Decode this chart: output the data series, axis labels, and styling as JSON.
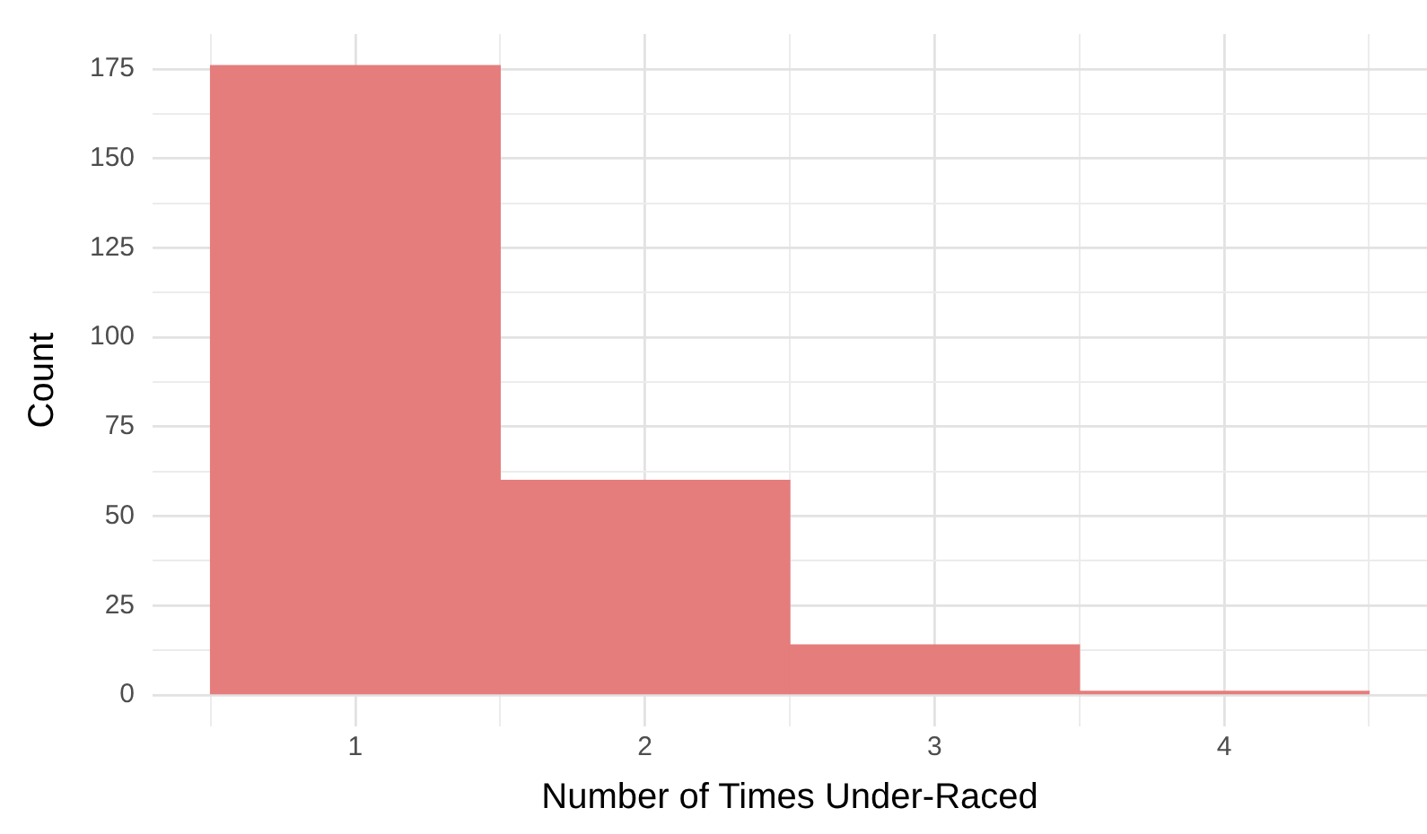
{
  "chart_data": {
    "type": "histogram",
    "xlabel": "Number of Times Under-Raced",
    "ylabel": "Count",
    "bins": [
      0.5,
      1.5,
      2.5,
      3.5,
      4.5
    ],
    "values": [
      176,
      60,
      14,
      1
    ],
    "color": "#e57d7d",
    "xlim": [
      0.3,
      4.7
    ],
    "xticks": [
      {
        "value": 0.5,
        "label": null
      },
      1,
      {
        "value": 1.5,
        "label": null
      },
      2,
      {
        "value": 2.5,
        "label": null
      },
      3,
      {
        "value": 3.5,
        "label": null
      },
      4,
      {
        "value": 4.5,
        "label": null
      }
    ],
    "ylim": [
      -8.8,
      184.8
    ],
    "yticks": [
      0,
      {
        "value": 12.5,
        "label": null
      },
      25,
      {
        "value": 37.5,
        "label": null
      },
      50,
      {
        "value": 62.5,
        "label": null
      },
      75,
      {
        "value": 87.5,
        "label": null
      },
      100,
      {
        "value": 112.5,
        "label": null
      },
      125,
      {
        "value": 137.5,
        "label": null
      },
      150,
      {
        "value": 162.5,
        "label": null
      },
      175
    ],
    "grid": true
  }
}
